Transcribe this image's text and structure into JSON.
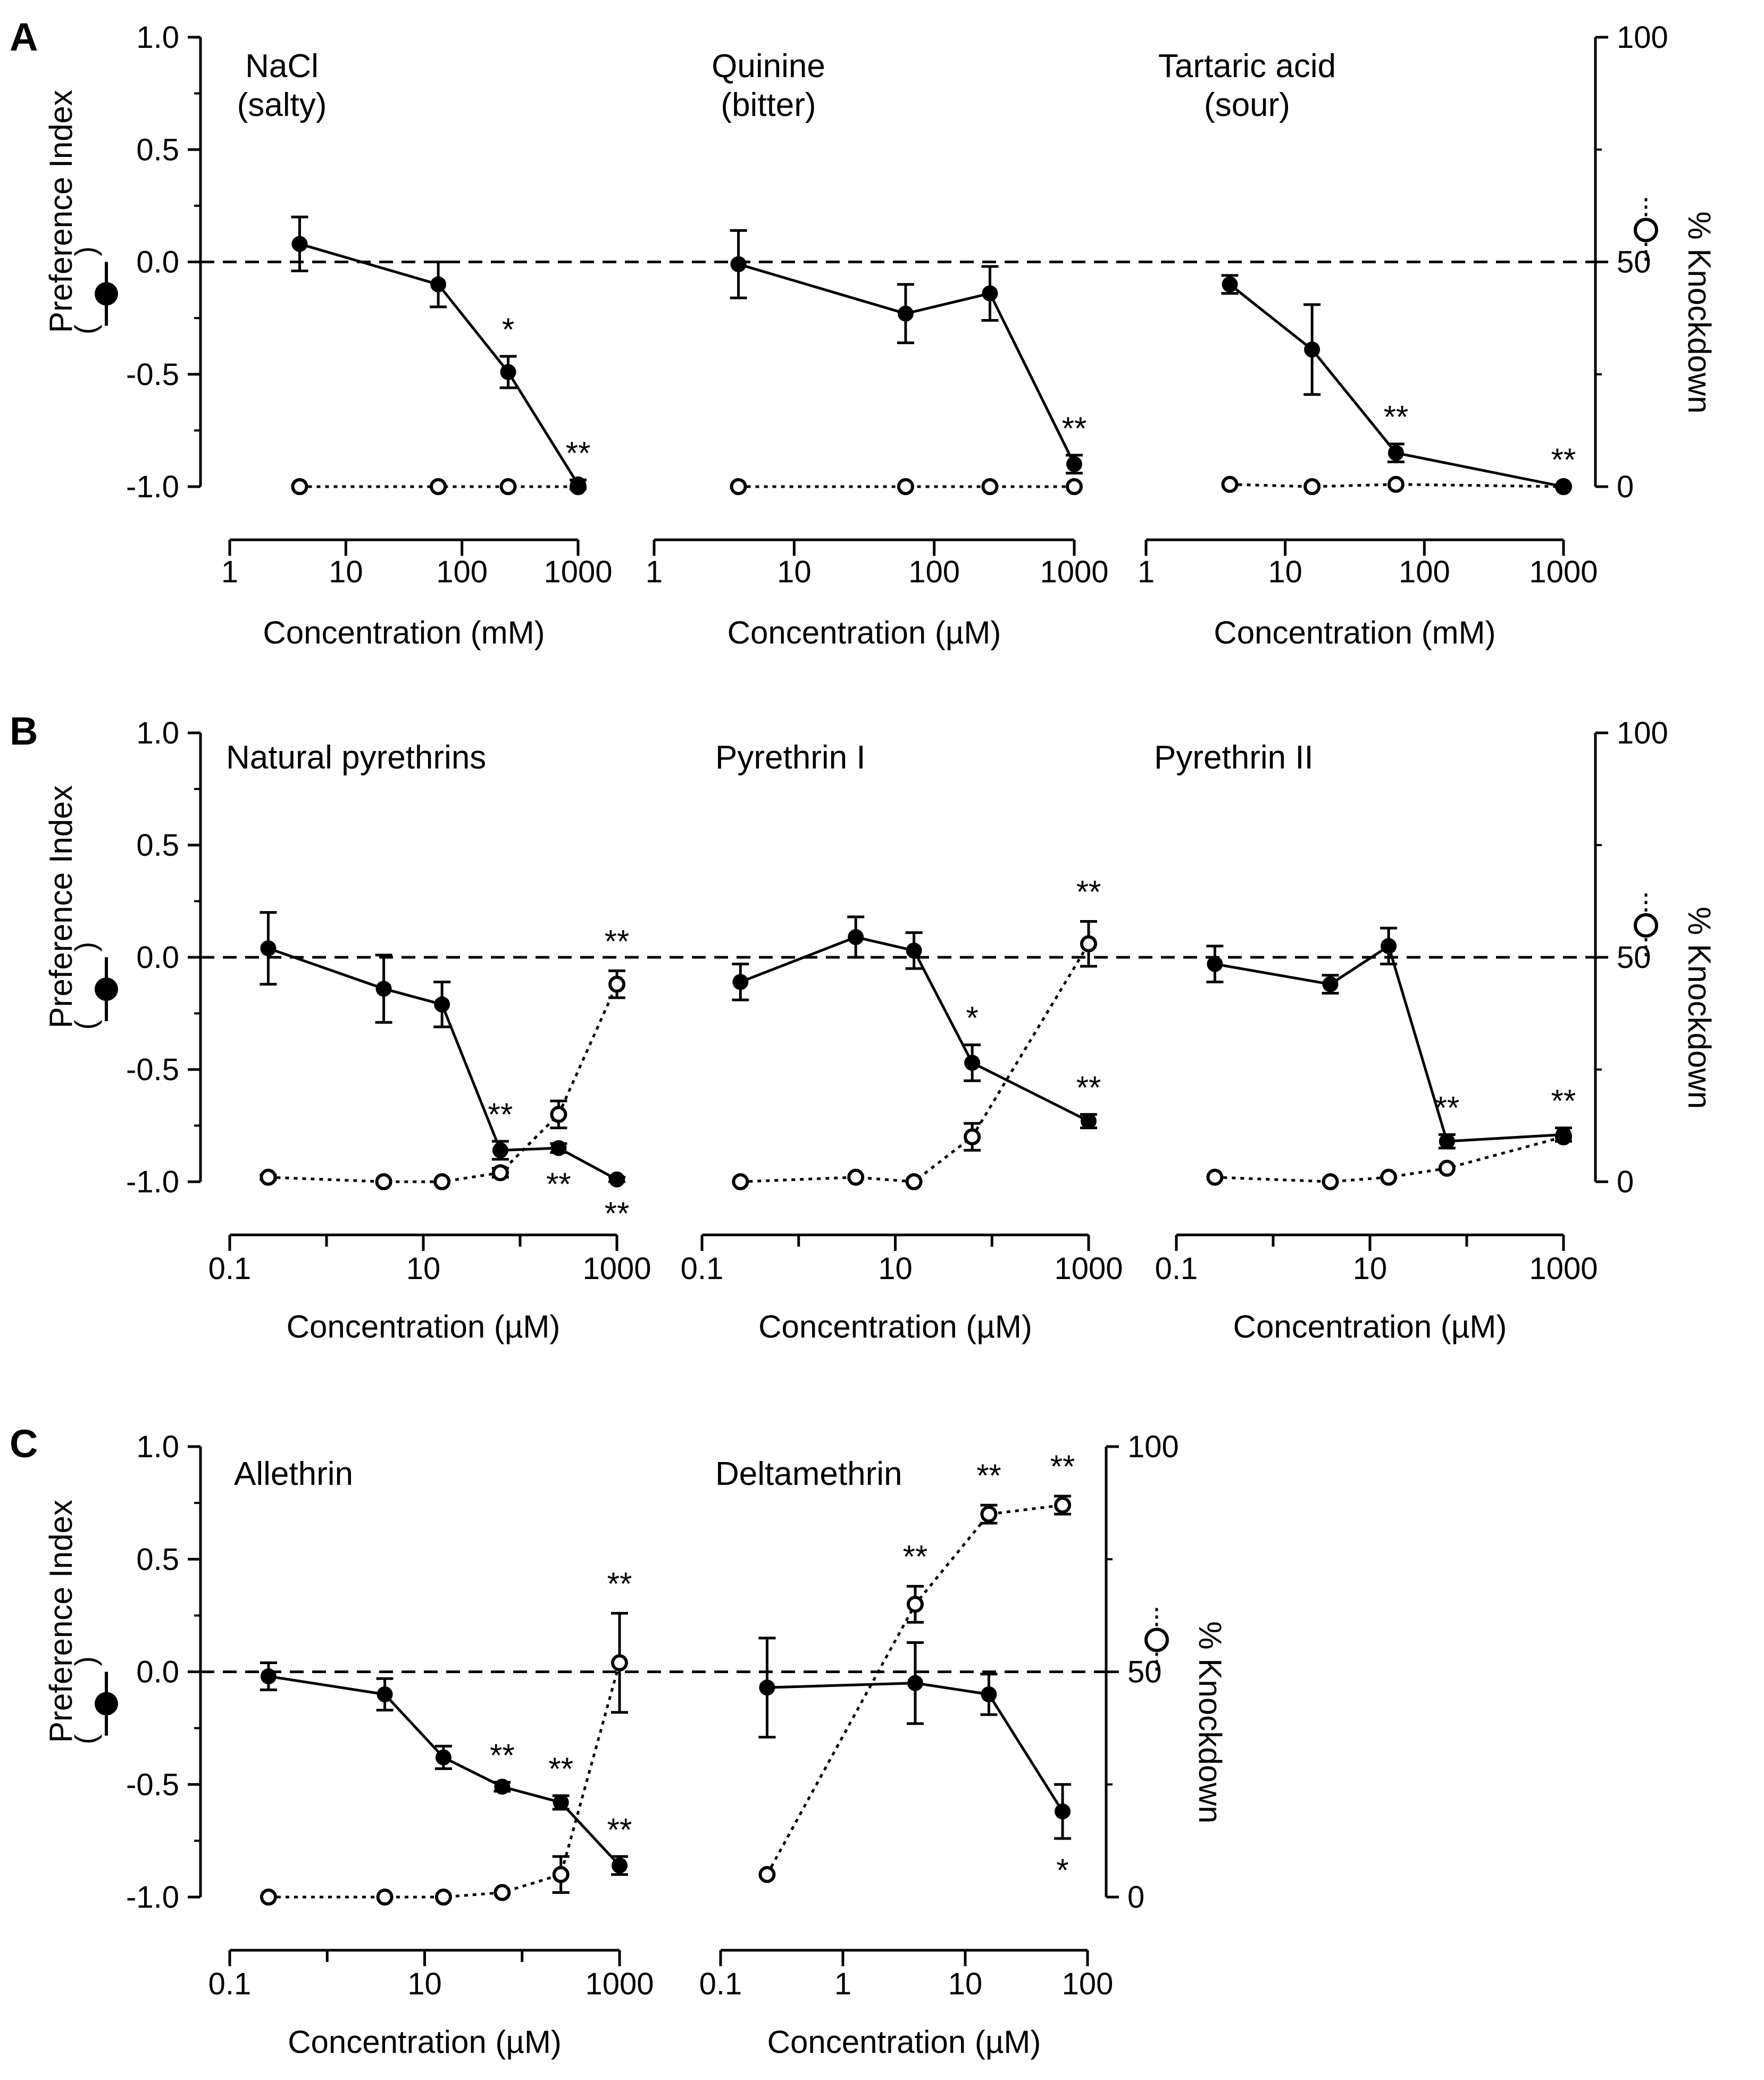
{
  "figure": {
    "left_axis_label": "Preference Index",
    "right_axis_label": "% Knockdown",
    "legend_left_symbol": "filled-circle-solid-line",
    "legend_right_symbol": "open-circle-dotted-line",
    "colors": {
      "ink": "#000000",
      "background": "#ffffff"
    }
  },
  "chart_data": [
    {
      "type": "line",
      "panel": "A",
      "show_letter": true,
      "show_left_axis": true,
      "show_right_axis": false,
      "title_lines": [
        "NaCl",
        "(salty)"
      ],
      "xlabel": "Concentration (mM)",
      "xscale": "log",
      "xlim": [
        1,
        1000
      ],
      "xticks": [
        "1",
        "10",
        "100",
        "1000"
      ],
      "ylim": [
        -1.0,
        1.0
      ],
      "yticks": [
        "1.0",
        "0.5",
        "0.0",
        "-0.5",
        "-1.0"
      ],
      "y2lim": [
        0,
        100
      ],
      "y2ticks": [
        "100",
        "50",
        "0"
      ],
      "pi_series": [
        {
          "x": 4,
          "y": 0.08,
          "err": 0.12
        },
        {
          "x": 62.5,
          "y": -0.1,
          "err": 0.1
        },
        {
          "x": 250,
          "y": -0.49,
          "err": 0.07,
          "sig": "*"
        },
        {
          "x": 1000,
          "y": -0.99,
          "err": 0.02,
          "sig": "**"
        }
      ],
      "kd_series": [
        {
          "x": 4,
          "y": 0
        },
        {
          "x": 62.5,
          "y": 0
        },
        {
          "x": 250,
          "y": 0
        },
        {
          "x": 1000,
          "y": 0
        }
      ]
    },
    {
      "type": "line",
      "panel": "A",
      "show_letter": false,
      "show_left_axis": false,
      "show_right_axis": false,
      "title_lines": [
        "Quinine",
        "(bitter)"
      ],
      "xlabel": "Concentration (µM)",
      "xscale": "log",
      "xlim": [
        1,
        1000
      ],
      "xticks": [
        "1",
        "10",
        "100",
        "1000"
      ],
      "ylim": [
        -1.0,
        1.0
      ],
      "y2lim": [
        0,
        100
      ],
      "pi_series": [
        {
          "x": 4,
          "y": -0.01,
          "err": 0.15
        },
        {
          "x": 62.5,
          "y": -0.23,
          "err": 0.13
        },
        {
          "x": 250,
          "y": -0.14,
          "err": 0.12
        },
        {
          "x": 1000,
          "y": -0.9,
          "err": 0.04,
          "sig": "**"
        }
      ],
      "kd_series": [
        {
          "x": 4,
          "y": 0
        },
        {
          "x": 62.5,
          "y": 0
        },
        {
          "x": 250,
          "y": 0
        },
        {
          "x": 1000,
          "y": 0
        }
      ]
    },
    {
      "type": "line",
      "panel": "A",
      "show_letter": false,
      "show_left_axis": false,
      "show_right_axis": true,
      "title_lines": [
        "Tartaric acid",
        "(sour)"
      ],
      "xlabel": "Concentration (mM)",
      "xscale": "log",
      "xlim": [
        1,
        1000
      ],
      "xticks": [
        "1",
        "10",
        "100",
        "1000"
      ],
      "ylim": [
        -1.0,
        1.0
      ],
      "y2lim": [
        0,
        100
      ],
      "y2ticks": [
        "100",
        "50",
        "0"
      ],
      "pi_series": [
        {
          "x": 4,
          "y": -0.1,
          "err": 0.04
        },
        {
          "x": 15.6,
          "y": -0.39,
          "err": 0.2
        },
        {
          "x": 62.5,
          "y": -0.85,
          "err": 0.04,
          "sig": "**"
        },
        {
          "x": 1000,
          "y": -1.0,
          "err": 0.0,
          "sig": "**"
        }
      ],
      "kd_series": [
        {
          "x": 4,
          "y": 0.5
        },
        {
          "x": 15.6,
          "y": 0
        },
        {
          "x": 62.5,
          "y": 0.5
        },
        {
          "x": 1000,
          "y": 0
        }
      ]
    },
    {
      "type": "line",
      "panel": "B",
      "show_letter": true,
      "show_left_axis": true,
      "show_right_axis": false,
      "title_lines": [
        "Natural pyrethrins"
      ],
      "xlabel": "Concentration (µM)",
      "xscale": "log",
      "xlim": [
        0.1,
        1000
      ],
      "xticks": [
        "0.1",
        "10",
        "1000"
      ],
      "ylim": [
        -1.0,
        1.0
      ],
      "yticks": [
        "1.0",
        "0.5",
        "0.0",
        "-0.5",
        "-1.0"
      ],
      "y2lim": [
        0,
        100
      ],
      "pi_series": [
        {
          "x": 0.25,
          "y": 0.04,
          "err": 0.16
        },
        {
          "x": 3.9,
          "y": -0.14,
          "err": 0.15
        },
        {
          "x": 15.6,
          "y": -0.21,
          "err": 0.1
        },
        {
          "x": 62.5,
          "y": -0.86,
          "err": 0.04,
          "sig": "**",
          "sig_pos": "above"
        },
        {
          "x": 250,
          "y": -0.85,
          "err": 0.02,
          "sig": "**",
          "sig_pos": "below"
        },
        {
          "x": 1000,
          "y": -0.99,
          "err": 0.01,
          "sig": "**",
          "sig_pos": "below"
        }
      ],
      "kd_series": [
        {
          "x": 0.25,
          "y": 1,
          "err": 0.5
        },
        {
          "x": 3.9,
          "y": 0
        },
        {
          "x": 15.6,
          "y": 0
        },
        {
          "x": 62.5,
          "y": 2,
          "err": 1
        },
        {
          "x": 250,
          "y": 15,
          "err": 3
        },
        {
          "x": 1000,
          "y": 44,
          "err": 3,
          "sig": "**"
        }
      ]
    },
    {
      "type": "line",
      "panel": "B",
      "show_letter": false,
      "show_left_axis": false,
      "show_right_axis": false,
      "title_lines": [
        "Pyrethrin I"
      ],
      "xlabel": "Concentration (µM)",
      "xscale": "log",
      "xlim": [
        0.1,
        1000
      ],
      "xticks": [
        "0.1",
        "10",
        "1000"
      ],
      "ylim": [
        -1.0,
        1.0
      ],
      "y2lim": [
        0,
        100
      ],
      "pi_series": [
        {
          "x": 0.25,
          "y": -0.11,
          "err": 0.08
        },
        {
          "x": 3.9,
          "y": 0.09,
          "err": 0.09
        },
        {
          "x": 15.6,
          "y": 0.03,
          "err": 0.08
        },
        {
          "x": 62.5,
          "y": -0.47,
          "err": 0.08,
          "sig": "*",
          "sig_pos": "above"
        },
        {
          "x": 1000,
          "y": -0.73,
          "err": 0.03,
          "sig": "**",
          "sig_pos": "above"
        }
      ],
      "kd_series": [
        {
          "x": 0.25,
          "y": 0
        },
        {
          "x": 3.9,
          "y": 1
        },
        {
          "x": 15.6,
          "y": 0
        },
        {
          "x": 62.5,
          "y": 10,
          "err": 3
        },
        {
          "x": 1000,
          "y": 53,
          "err": 5,
          "sig": "**"
        }
      ]
    },
    {
      "type": "line",
      "panel": "B",
      "show_letter": false,
      "show_left_axis": false,
      "show_right_axis": true,
      "title_lines": [
        "Pyrethrin II"
      ],
      "xlabel": "Concentration (µM)",
      "xscale": "log",
      "xlim": [
        0.1,
        1000
      ],
      "xticks": [
        "0.1",
        "10",
        "1000"
      ],
      "ylim": [
        -1.0,
        1.0
      ],
      "y2lim": [
        0,
        100
      ],
      "y2ticks": [
        "100",
        "50",
        "0"
      ],
      "pi_series": [
        {
          "x": 0.25,
          "y": -0.03,
          "err": 0.08
        },
        {
          "x": 3.9,
          "y": -0.12,
          "err": 0.04
        },
        {
          "x": 15.6,
          "y": 0.05,
          "err": 0.08
        },
        {
          "x": 62.5,
          "y": -0.82,
          "err": 0.03,
          "sig": "**",
          "sig_pos": "above"
        },
        {
          "x": 1000,
          "y": -0.79,
          "err": 0.03,
          "sig": "**",
          "sig_pos": "above"
        }
      ],
      "kd_series": [
        {
          "x": 0.25,
          "y": 1
        },
        {
          "x": 3.9,
          "y": 0
        },
        {
          "x": 15.6,
          "y": 1
        },
        {
          "x": 62.5,
          "y": 3
        },
        {
          "x": 1000,
          "y": 10
        }
      ]
    },
    {
      "type": "line",
      "panel": "C",
      "show_letter": true,
      "show_left_axis": true,
      "show_right_axis": false,
      "title_lines": [
        "Allethrin"
      ],
      "xlabel": "Concentration (µM)",
      "xscale": "log",
      "xlim": [
        0.1,
        1000
      ],
      "xticks": [
        "0.1",
        "10",
        "1000"
      ],
      "ylim": [
        -1.0,
        1.0
      ],
      "yticks": [
        "1.0",
        "0.5",
        "0.0",
        "-0.5",
        "-1.0"
      ],
      "y2lim": [
        0,
        100
      ],
      "pi_series": [
        {
          "x": 0.25,
          "y": -0.02,
          "err": 0.06
        },
        {
          "x": 3.9,
          "y": -0.1,
          "err": 0.07
        },
        {
          "x": 15.6,
          "y": -0.38,
          "err": 0.05
        },
        {
          "x": 62.5,
          "y": -0.51,
          "err": 0.02,
          "sig": "**",
          "sig_pos": "above"
        },
        {
          "x": 250,
          "y": -0.58,
          "err": 0.03,
          "sig": "**",
          "sig_pos": "above"
        },
        {
          "x": 1000,
          "y": -0.86,
          "err": 0.04,
          "sig": "**",
          "sig_pos": "above"
        }
      ],
      "kd_series": [
        {
          "x": 0.25,
          "y": 0
        },
        {
          "x": 3.9,
          "y": 0
        },
        {
          "x": 15.6,
          "y": 0
        },
        {
          "x": 62.5,
          "y": 1
        },
        {
          "x": 250,
          "y": 5,
          "err": 4
        },
        {
          "x": 1000,
          "y": 52,
          "err": 11,
          "sig": "**"
        }
      ]
    },
    {
      "type": "line",
      "panel": "C",
      "show_letter": false,
      "show_left_axis": false,
      "show_right_axis": true,
      "title_lines": [
        "Deltamethrin"
      ],
      "xlabel": "Concentration (µM)",
      "xscale": "log",
      "xlim": [
        0.1,
        100
      ],
      "xticks": [
        "0.1",
        "1",
        "10",
        "100"
      ],
      "ylim": [
        -1.0,
        1.0
      ],
      "y2lim": [
        0,
        100
      ],
      "y2ticks": [
        "100",
        "50",
        "0"
      ],
      "pi_series": [
        {
          "x": 0.24,
          "y": -0.07,
          "err": 0.22
        },
        {
          "x": 3.9,
          "y": -0.05,
          "err": 0.18
        },
        {
          "x": 15.6,
          "y": -0.1,
          "err": 0.09
        },
        {
          "x": 62.5,
          "y": -0.62,
          "err": 0.12,
          "sig": "*",
          "sig_pos": "below"
        }
      ],
      "kd_series": [
        {
          "x": 0.24,
          "y": 5
        },
        {
          "x": 3.9,
          "y": 65,
          "err": 4,
          "sig": "**"
        },
        {
          "x": 15.6,
          "y": 85,
          "err": 2,
          "sig": "**"
        },
        {
          "x": 62.5,
          "y": 87,
          "err": 2,
          "sig": "**"
        }
      ]
    }
  ]
}
